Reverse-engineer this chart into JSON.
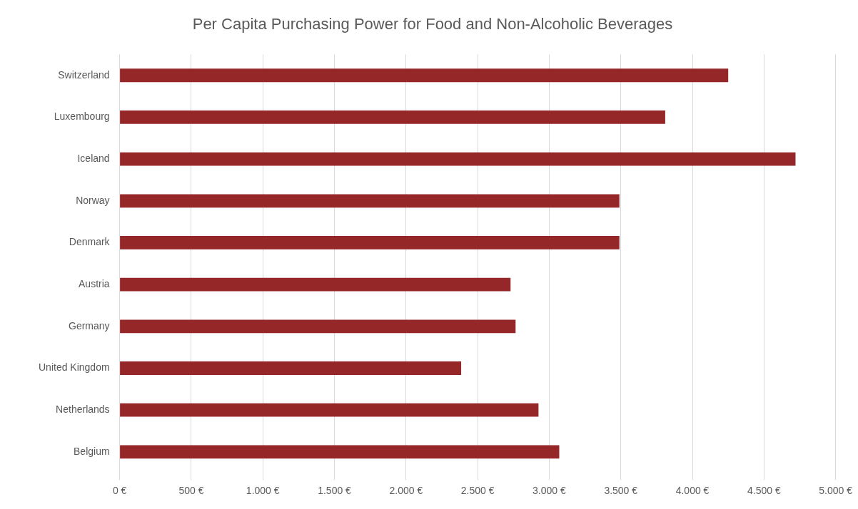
{
  "chart_data": {
    "type": "bar",
    "orientation": "horizontal",
    "title": "Per Capita Purchasing Power for Food and Non-Alcoholic Beverages",
    "categories": [
      "Switzerland",
      "Luxembourg",
      "Iceland",
      "Norway",
      "Denmark",
      "Austria",
      "Germany",
      "United Kingdom",
      "Netherlands",
      "Belgium"
    ],
    "values": [
      4250,
      3810,
      4720,
      3490,
      3490,
      2730,
      2765,
      2385,
      2925,
      3070
    ],
    "color": "#952729",
    "xlim": [
      0,
      5000
    ],
    "xticks": [
      {
        "value": 0,
        "label": "0 €"
      },
      {
        "value": 500,
        "label": "500 €"
      },
      {
        "value": 1000,
        "label": "1.000 €"
      },
      {
        "value": 1500,
        "label": "1.500 €"
      },
      {
        "value": 2000,
        "label": "2.000 €"
      },
      {
        "value": 2500,
        "label": "2.500 €"
      },
      {
        "value": 3000,
        "label": "3.000 €"
      },
      {
        "value": 3500,
        "label": "3.500 €"
      },
      {
        "value": 4000,
        "label": "4.000 €"
      },
      {
        "value": 4500,
        "label": "4.500 €"
      },
      {
        "value": 5000,
        "label": "5.000 €"
      }
    ],
    "grid": "x",
    "legend": false
  }
}
